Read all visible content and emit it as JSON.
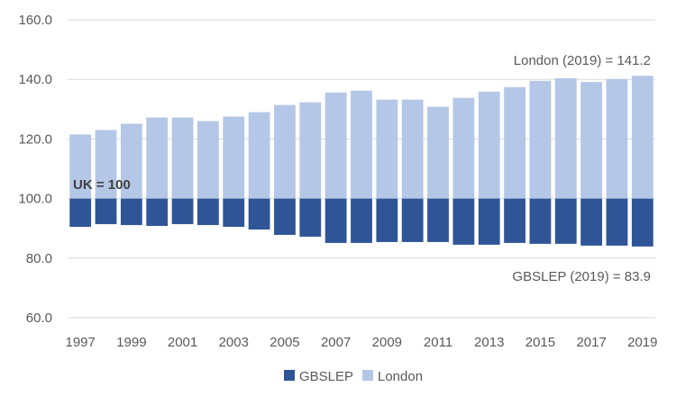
{
  "chart_data": {
    "type": "bar",
    "title": "",
    "xlabel": "",
    "ylabel": "",
    "baseline": 100,
    "ylim": [
      60,
      160
    ],
    "yticks": [
      "60.0",
      "80.0",
      "100.0",
      "120.0",
      "140.0",
      "160.0"
    ],
    "ytick_values": [
      60,
      80,
      100,
      120,
      140,
      160
    ],
    "categories": [
      "1997",
      "1998",
      "1999",
      "2000",
      "2001",
      "2002",
      "2003",
      "2004",
      "2005",
      "2006",
      "2007",
      "2008",
      "2009",
      "2010",
      "2011",
      "2012",
      "2013",
      "2014",
      "2015",
      "2016",
      "2017",
      "2018",
      "2019"
    ],
    "xtick_labels": [
      "1997",
      "1999",
      "2001",
      "2003",
      "2005",
      "2007",
      "2009",
      "2011",
      "2013",
      "2015",
      "2017",
      "2019"
    ],
    "series": [
      {
        "name": "GBSLEP",
        "color": "#2f5597",
        "values": [
          90.5,
          91.4,
          91.1,
          90.8,
          91.4,
          91.1,
          90.5,
          89.6,
          87.8,
          87.2,
          85.1,
          85.1,
          85.4,
          85.4,
          85.4,
          84.5,
          84.5,
          85.1,
          84.8,
          84.8,
          84.2,
          84.2,
          83.9
        ]
      },
      {
        "name": "London",
        "color": "#b4c7e7",
        "values": [
          121.5,
          123.0,
          125.1,
          127.2,
          127.2,
          126.0,
          127.5,
          129.0,
          131.4,
          132.3,
          135.6,
          136.2,
          133.2,
          133.2,
          130.8,
          133.8,
          135.9,
          137.4,
          139.5,
          140.4,
          139.1,
          140.1,
          141.2
        ]
      }
    ],
    "annotations": {
      "london": "London (2019) = 141.2",
      "gbslep": "GBSLEP (2019) = 83.9",
      "uk": "UK = 100"
    },
    "legend": {
      "position": "bottom",
      "entries": [
        "GBSLEP",
        "London"
      ]
    },
    "gridline_color": "#d9d9d9"
  }
}
